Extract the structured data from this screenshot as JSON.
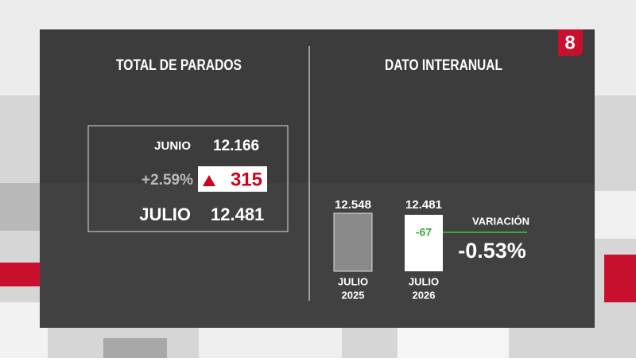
{
  "logo": "8",
  "total": {
    "title": "TOTAL DE PARADOS",
    "previous_month": "JUNIO",
    "previous_value": "12.166",
    "change_percent": "+2.59%",
    "change_value": "315",
    "current_month": "JULIO",
    "current_value": "12.481"
  },
  "year_on_year": {
    "title": "DATO INTERANUAL",
    "bars": [
      {
        "value_label": "12.548",
        "label_line1": "JULIO",
        "label_line2": "2025"
      },
      {
        "value_label": "12.481",
        "label_line1": "JULIO",
        "label_line2": "2026",
        "difference": "-67"
      }
    ],
    "variation_label": "VARIACIÓN",
    "variation_value": "-0.53%"
  }
}
